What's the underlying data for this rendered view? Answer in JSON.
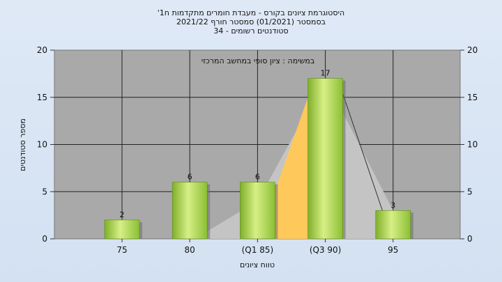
{
  "title_lines": [
    "היסטוגרמת ציונים בקורס - מעבדת חומרים מתקדמות ח1'",
    "בסמסטר (01/2021)  סמסטר חורף 2021/22",
    "סטודנטים רשומים - 34"
  ],
  "chart_data": {
    "type": "bar",
    "title": "היסטוגרמת ציונים בקורס - מעבדת חומרים מתקדמות ח1'",
    "subtitle": "בסמסטר (01/2021)  סמסטר חורף 2021/22 / סטודנטים רשומים - 34",
    "annotation": "במשימה : ציון סופי במחשב המרכזי",
    "categories": [
      "75",
      "80",
      "(Q1 85)",
      "(Q3 90)",
      "95"
    ],
    "values": [
      2,
      6,
      6,
      17,
      3
    ],
    "xlabel": "טווח ציונים",
    "ylabel": "מספר סטודנטים",
    "ylim": [
      0,
      20
    ],
    "yticks": [
      0,
      5,
      10,
      15,
      20
    ],
    "grid": true,
    "legend": "none",
    "colors": {
      "plot_bg": "#a9a9a9",
      "bar_light": "#d7ef86",
      "bar_dark": "#7fb02a",
      "quartile_fill": "#ffc85a",
      "shadow_fill": "#c4c4c4"
    }
  }
}
